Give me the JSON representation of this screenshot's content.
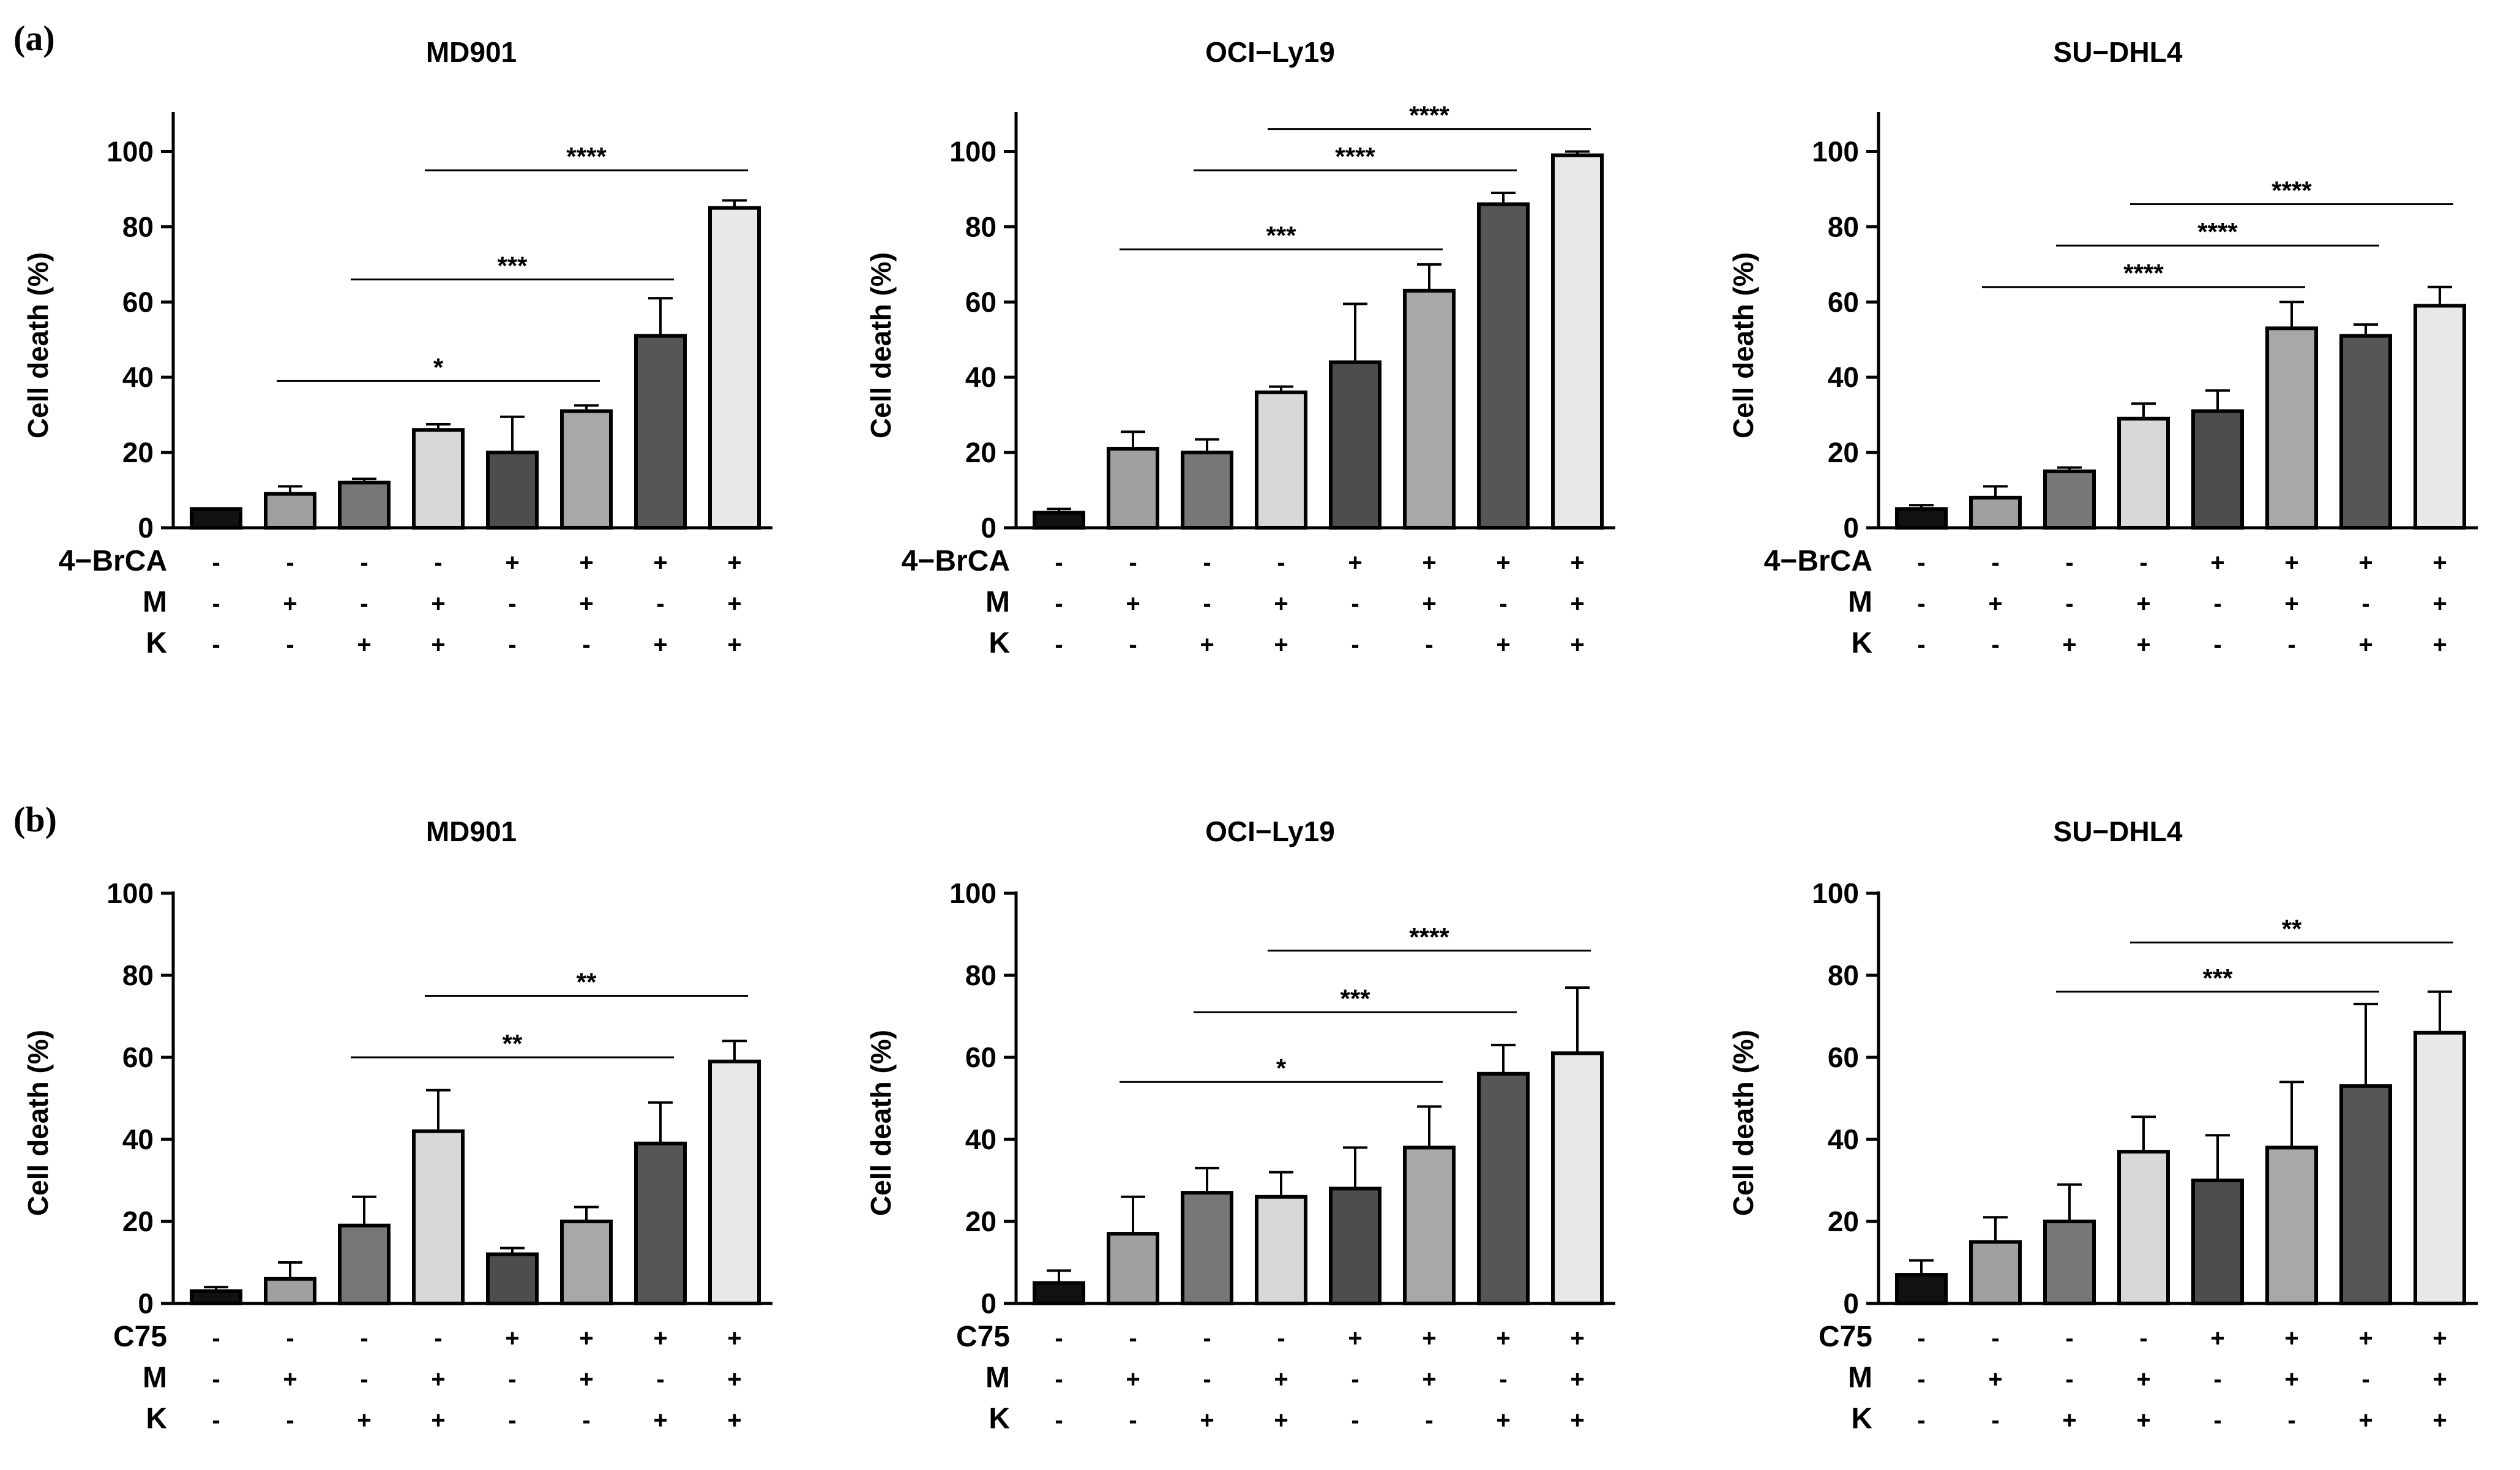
{
  "figure": {
    "panel_labels": [
      "(a)",
      "(b)"
    ],
    "ylabel": "Cell death (%)",
    "yticks": [
      0,
      20,
      40,
      60,
      80,
      100
    ]
  },
  "colors": {
    "control": "#111111",
    "M": "#a0a0a0",
    "K": "#777777",
    "MK": "#d8d8d8",
    "inhibitor": "#4d4d4d",
    "inhibitor_M": "#a8a8a8",
    "inhibitor_K": "#565656",
    "inhibitor_MK": "#e8e8e8"
  },
  "chart_data": [
    {
      "type": "bar",
      "panel": "(a)",
      "title": "MD901",
      "xlabel": "",
      "ylabel": "Cell death (%)",
      "ylim": [
        0,
        110
      ],
      "rows": [
        {
          "label": "4−BrCA",
          "signs": [
            "-",
            "-",
            "-",
            "-",
            "+",
            "+",
            "+",
            "+"
          ]
        },
        {
          "label": "M",
          "signs": [
            "-",
            "+",
            "-",
            "+",
            "-",
            "+",
            "-",
            "+"
          ]
        },
        {
          "label": "K",
          "signs": [
            "-",
            "-",
            "+",
            "+",
            "-",
            "-",
            "+",
            "+"
          ]
        }
      ],
      "values": [
        5,
        9,
        12,
        26,
        20,
        31,
        51,
        85
      ],
      "errors": [
        0,
        2,
        1,
        1.5,
        9.5,
        1.5,
        10,
        2
      ],
      "comparisons": [
        {
          "from": 1,
          "to": 5,
          "label": "*",
          "y": 39
        },
        {
          "from": 2,
          "to": 6,
          "label": "***",
          "y": 66
        },
        {
          "from": 3,
          "to": 7,
          "label": "****",
          "y": 95
        }
      ]
    },
    {
      "type": "bar",
      "panel": "(a)",
      "title": "OCI−Ly19",
      "xlabel": "",
      "ylabel": "Cell death (%)",
      "ylim": [
        0,
        110
      ],
      "rows": [
        {
          "label": "4−BrCA",
          "signs": [
            "-",
            "-",
            "-",
            "-",
            "+",
            "+",
            "+",
            "+"
          ]
        },
        {
          "label": "M",
          "signs": [
            "-",
            "+",
            "-",
            "+",
            "-",
            "+",
            "-",
            "+"
          ]
        },
        {
          "label": "K",
          "signs": [
            "-",
            "-",
            "+",
            "+",
            "-",
            "-",
            "+",
            "+"
          ]
        }
      ],
      "values": [
        4,
        21,
        20,
        36,
        44,
        63,
        86,
        99
      ],
      "errors": [
        1,
        4.5,
        3.5,
        1.5,
        15.5,
        7,
        3,
        1
      ],
      "comparisons": [
        {
          "from": 1,
          "to": 5,
          "label": "***",
          "y": 74
        },
        {
          "from": 2,
          "to": 6,
          "label": "****",
          "y": 95
        },
        {
          "from": 3,
          "to": 7,
          "label": "****",
          "y": 106
        }
      ]
    },
    {
      "type": "bar",
      "panel": "(a)",
      "title": "SU−DHL4",
      "xlabel": "",
      "ylabel": "Cell death (%)",
      "ylim": [
        0,
        110
      ],
      "rows": [
        {
          "label": "4−BrCA",
          "signs": [
            "-",
            "-",
            "-",
            "-",
            "+",
            "+",
            "+",
            "+"
          ]
        },
        {
          "label": "M",
          "signs": [
            "-",
            "+",
            "-",
            "+",
            "-",
            "+",
            "-",
            "+"
          ]
        },
        {
          "label": "K",
          "signs": [
            "-",
            "-",
            "+",
            "+",
            "-",
            "-",
            "+",
            "+"
          ]
        }
      ],
      "values": [
        5,
        8,
        15,
        29,
        31,
        53,
        51,
        59
      ],
      "errors": [
        1,
        3,
        1,
        4,
        5.5,
        7,
        3,
        5
      ],
      "comparisons": [
        {
          "from": 1,
          "to": 5,
          "label": "****",
          "y": 64
        },
        {
          "from": 2,
          "to": 6,
          "label": "****",
          "y": 75
        },
        {
          "from": 3,
          "to": 7,
          "label": "****",
          "y": 86
        }
      ]
    },
    {
      "type": "bar",
      "panel": "(b)",
      "title": "MD901",
      "xlabel": "",
      "ylabel": "Cell death (%)",
      "ylim": [
        0,
        100
      ],
      "rows": [
        {
          "label": "C75",
          "signs": [
            "-",
            "-",
            "-",
            "-",
            "+",
            "+",
            "+",
            "+"
          ]
        },
        {
          "label": "M",
          "signs": [
            "-",
            "+",
            "-",
            "+",
            "-",
            "+",
            "-",
            "+"
          ]
        },
        {
          "label": "K",
          "signs": [
            "-",
            "-",
            "+",
            "+",
            "-",
            "-",
            "+",
            "+"
          ]
        }
      ],
      "values": [
        3,
        6,
        19,
        42,
        12,
        20,
        39,
        59
      ],
      "errors": [
        1,
        4,
        7,
        10,
        1.5,
        3.5,
        10,
        5
      ],
      "comparisons": [
        {
          "from": 2,
          "to": 6,
          "label": "**",
          "y": 60
        },
        {
          "from": 3,
          "to": 7,
          "label": "**",
          "y": 75
        }
      ]
    },
    {
      "type": "bar",
      "panel": "(b)",
      "title": "OCI−Ly19",
      "xlabel": "",
      "ylabel": "Cell death (%)",
      "ylim": [
        0,
        100
      ],
      "rows": [
        {
          "label": "C75",
          "signs": [
            "-",
            "-",
            "-",
            "-",
            "+",
            "+",
            "+",
            "+"
          ]
        },
        {
          "label": "M",
          "signs": [
            "-",
            "+",
            "-",
            "+",
            "-",
            "+",
            "-",
            "+"
          ]
        },
        {
          "label": "K",
          "signs": [
            "-",
            "-",
            "+",
            "+",
            "-",
            "-",
            "+",
            "+"
          ]
        }
      ],
      "values": [
        5,
        17,
        27,
        26,
        28,
        38,
        56,
        61
      ],
      "errors": [
        3,
        9,
        6,
        6,
        10,
        10,
        7,
        16
      ],
      "comparisons": [
        {
          "from": 1,
          "to": 5,
          "label": "*",
          "y": 54
        },
        {
          "from": 2,
          "to": 6,
          "label": "***",
          "y": 71
        },
        {
          "from": 3,
          "to": 7,
          "label": "****",
          "y": 86
        }
      ]
    },
    {
      "type": "bar",
      "panel": "(b)",
      "title": "SU−DHL4",
      "xlabel": "",
      "ylabel": "Cell death (%)",
      "ylim": [
        0,
        100
      ],
      "rows": [
        {
          "label": "C75",
          "signs": [
            "-",
            "-",
            "-",
            "-",
            "+",
            "+",
            "+",
            "+"
          ]
        },
        {
          "label": "M",
          "signs": [
            "-",
            "+",
            "-",
            "+",
            "-",
            "+",
            "-",
            "+"
          ]
        },
        {
          "label": "K",
          "signs": [
            "-",
            "-",
            "+",
            "+",
            "-",
            "-",
            "+",
            "+"
          ]
        }
      ],
      "values": [
        7,
        15,
        20,
        37,
        30,
        38,
        53,
        66
      ],
      "errors": [
        3.5,
        6,
        9,
        8.5,
        11,
        16,
        20,
        10
      ],
      "comparisons": [
        {
          "from": 2,
          "to": 6,
          "label": "***",
          "y": 76
        },
        {
          "from": 3,
          "to": 7,
          "label": "**",
          "y": 88
        }
      ]
    }
  ]
}
